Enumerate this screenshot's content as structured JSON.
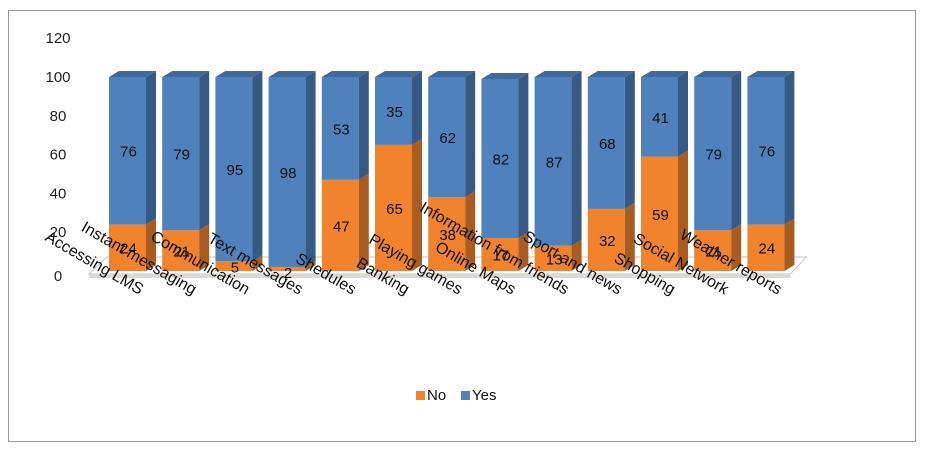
{
  "chart_data": {
    "type": "bar",
    "stacked": true,
    "three_d": true,
    "categories": [
      "Accessing LMS",
      "Instant messaging",
      "Communication",
      "Text messages",
      "Shedules",
      "Banking",
      "Playing games",
      "Online Maps",
      "Information from friends",
      "Sport and news",
      "Shopping",
      "Social Network",
      "Weather reports"
    ],
    "series": [
      {
        "name": "No",
        "color": "#f0832c",
        "values": [
          24,
          21,
          5,
          2,
          47,
          65,
          38,
          17,
          13,
          32,
          59,
          21,
          24
        ]
      },
      {
        "name": "Yes",
        "color": "#4f81bd",
        "values": [
          76,
          79,
          95,
          98,
          53,
          35,
          62,
          82,
          87,
          68,
          41,
          79,
          76
        ]
      }
    ],
    "title": "",
    "xlabel": "",
    "ylabel": "",
    "ylim": [
      0,
      120
    ],
    "yticks": [
      0,
      20,
      40,
      60,
      80,
      100,
      120
    ],
    "grid": false,
    "legend_position": "bottom",
    "data_labels": true
  }
}
